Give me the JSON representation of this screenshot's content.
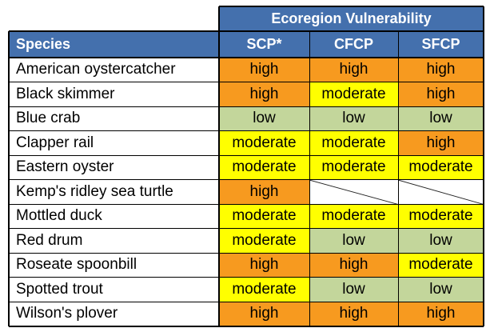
{
  "header": {
    "group_label": "Ecoregion Vulnerability",
    "species_label": "Species",
    "columns": [
      "SCP*",
      "CFCP",
      "SFCP"
    ]
  },
  "rows": [
    {
      "species": "American oystercatcher",
      "values": [
        "high",
        "high",
        "high"
      ]
    },
    {
      "species": "Black skimmer",
      "values": [
        "high",
        "moderate",
        "high"
      ]
    },
    {
      "species": "Blue crab",
      "values": [
        "low",
        "low",
        "low"
      ]
    },
    {
      "species": "Clapper rail",
      "values": [
        "moderate",
        "moderate",
        "high"
      ]
    },
    {
      "species": "Eastern oyster",
      "values": [
        "moderate",
        "moderate",
        "moderate"
      ]
    },
    {
      "species": "Kemp's ridley sea turtle",
      "values": [
        "high",
        "",
        ""
      ]
    },
    {
      "species": "Mottled duck",
      "values": [
        "moderate",
        "moderate",
        "moderate"
      ]
    },
    {
      "species": "Red drum",
      "values": [
        "moderate",
        "low",
        "low"
      ]
    },
    {
      "species": "Roseate spoonbill",
      "values": [
        "high",
        "high",
        "moderate"
      ]
    },
    {
      "species": "Spotted trout",
      "values": [
        "moderate",
        "low",
        "low"
      ]
    },
    {
      "species": "Wilson's plover",
      "values": [
        "high",
        "high",
        "high"
      ]
    }
  ],
  "colors": {
    "header_bg": "#4470ad",
    "high": "#f79a1f",
    "moderate": "#ffff00",
    "low": "#c3d69b",
    "empty": "#ffffff"
  }
}
